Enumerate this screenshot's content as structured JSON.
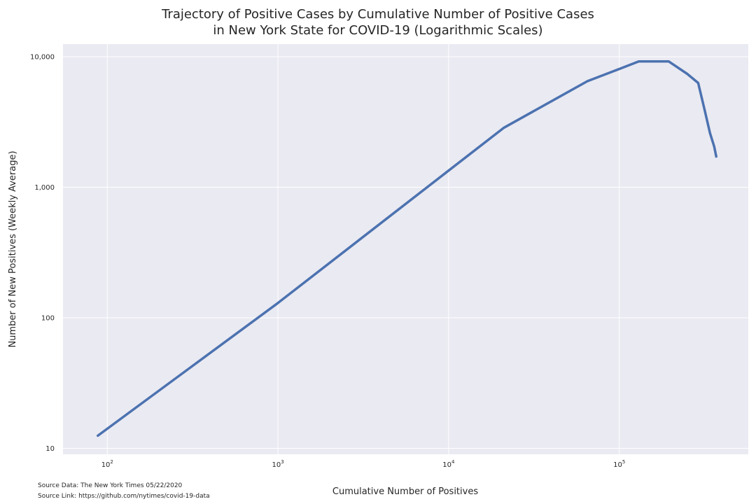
{
  "chart_data": {
    "type": "line",
    "title_lines": [
      "Trajectory of Positive Cases by Cumulative Number of Positive Cases",
      "in New York State for COVID-19 (Logarithmic Scales)"
    ],
    "xlabel": "Cumulative Number of Positives",
    "ylabel": "Number of New Positives (Weekly Average)",
    "xscale": "log",
    "yscale": "log",
    "xlim": [
      55,
      570000
    ],
    "ylim": [
      9,
      12500
    ],
    "grid": true,
    "x_ticks": [
      {
        "value": 100,
        "base": "10",
        "exp": "2"
      },
      {
        "value": 1000,
        "base": "10",
        "exp": "3"
      },
      {
        "value": 10000,
        "base": "10",
        "exp": "4"
      },
      {
        "value": 100000,
        "base": "10",
        "exp": "5"
      }
    ],
    "y_ticks": [
      {
        "value": 10,
        "label": "10"
      },
      {
        "value": 100,
        "label": "100"
      },
      {
        "value": 1000,
        "label": "1,000"
      },
      {
        "value": 10000,
        "label": "10,000"
      }
    ],
    "line_color": "#4c72b0",
    "background_color": "#eaeaf2",
    "x": [
      88,
      1000,
      21000,
      65000,
      130000,
      195000,
      250000,
      290000,
      315000,
      340000,
      360000,
      370000
    ],
    "y": [
      12.5,
      130,
      2850,
      6500,
      9200,
      9200,
      7400,
      6300,
      4000,
      2600,
      2050,
      1720
    ]
  },
  "footer": {
    "source_data": "Source Data: The New York Times 05/22/2020",
    "source_link": "Source Link: https://github.com/nytimes/covid-19-data"
  }
}
